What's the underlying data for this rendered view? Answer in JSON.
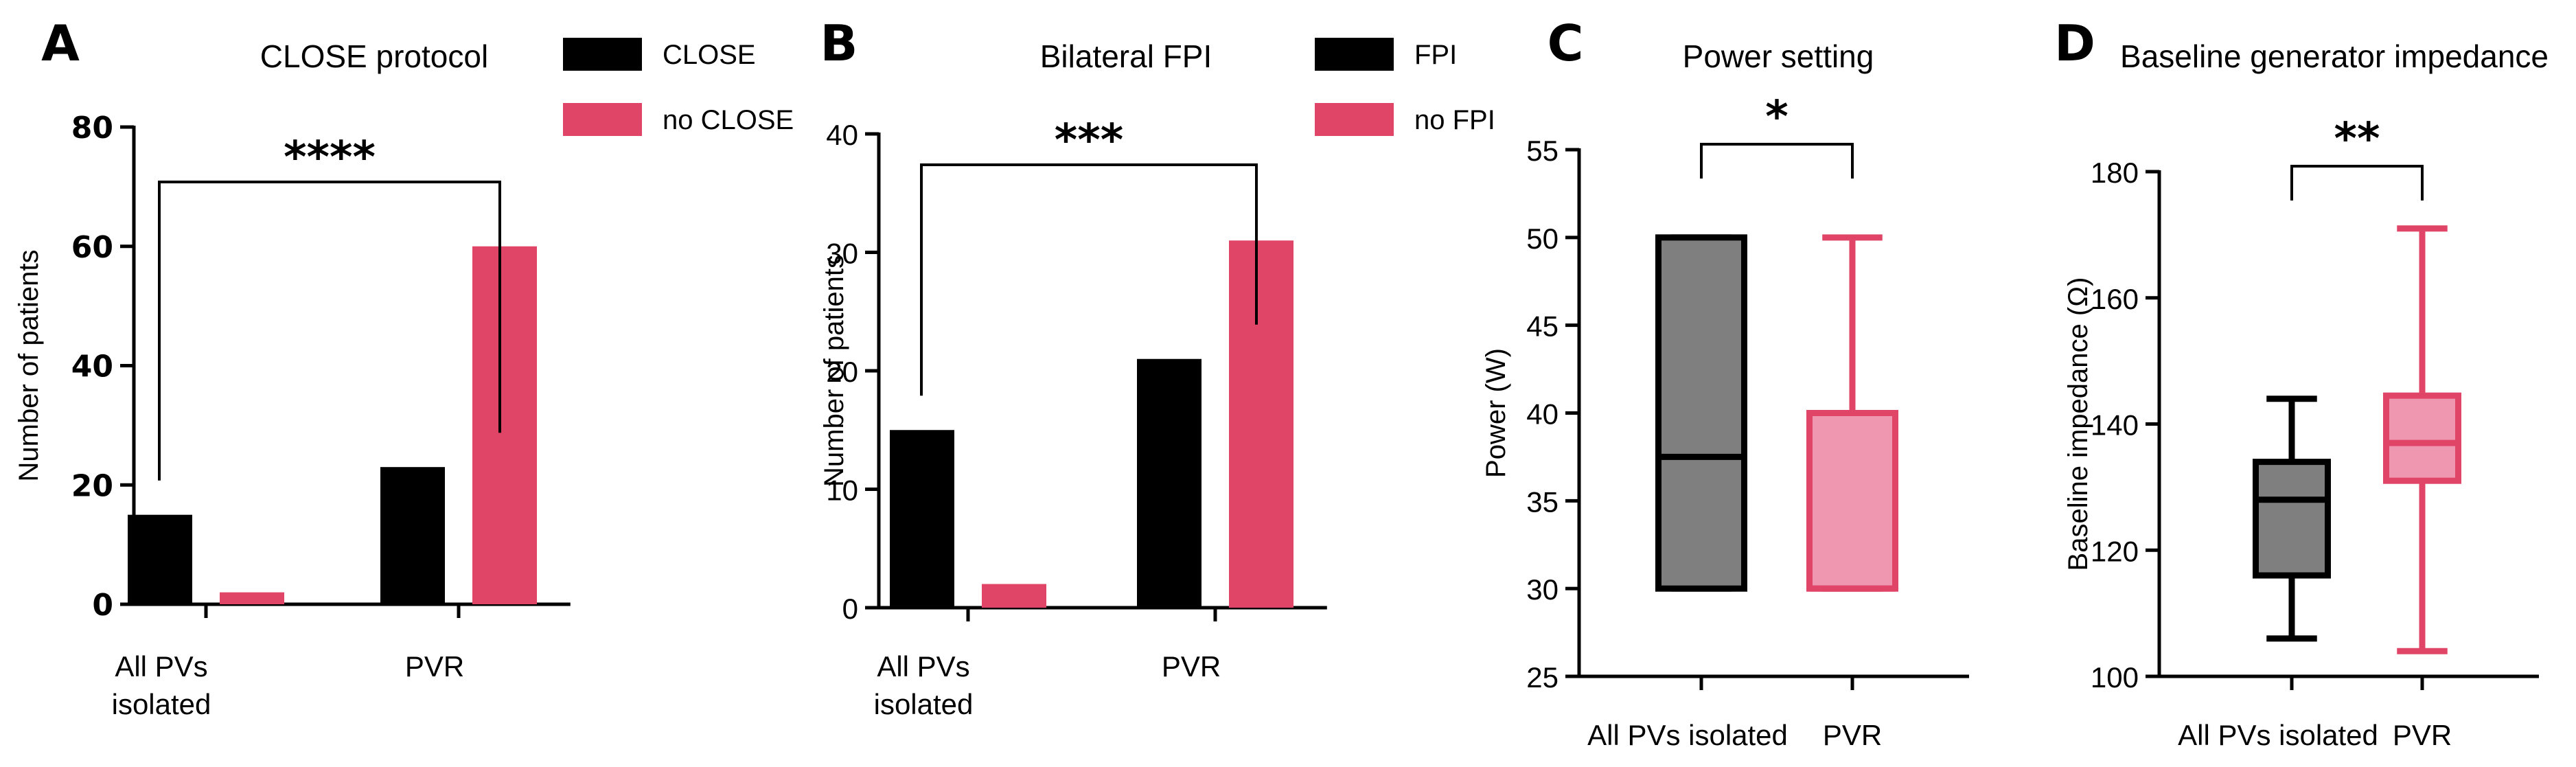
{
  "colors": {
    "black": "#000000",
    "pink": "#e04466",
    "gray": "#7f7f7f",
    "light_pink": "#ef96b0"
  },
  "chart_data": [
    {
      "panel": "A",
      "type": "bar",
      "title": "CLOSE protocol",
      "ylabel": "Number of patients",
      "xlabel": "",
      "categories": [
        [
          "All PVs",
          "isolated"
        ],
        [
          "PVR"
        ]
      ],
      "series": [
        {
          "name": "CLOSE",
          "color": "#000000",
          "values": [
            15,
            23
          ]
        },
        {
          "name": "no CLOSE",
          "color": "#e04466",
          "values": [
            2,
            60
          ]
        }
      ],
      "ylim": [
        0,
        80
      ],
      "yticks": [
        0,
        20,
        40,
        60,
        80
      ],
      "significance": {
        "label": "****",
        "from": 0,
        "to": 1
      },
      "legend": "top-right"
    },
    {
      "panel": "B",
      "type": "bar",
      "title": "Bilateral FPI",
      "ylabel": "Number of patients",
      "xlabel": "",
      "categories": [
        [
          "All PVs",
          "isolated"
        ],
        [
          "PVR"
        ]
      ],
      "series": [
        {
          "name": "FPI",
          "color": "#000000",
          "values": [
            15,
            21
          ]
        },
        {
          "name": "no FPI",
          "color": "#e04466",
          "values": [
            2,
            31
          ]
        }
      ],
      "ylim": [
        0,
        40
      ],
      "yticks": [
        0,
        10,
        20,
        30,
        40
      ],
      "significance": {
        "label": "***",
        "from": 0,
        "to": 1
      },
      "legend": "top-right"
    },
    {
      "panel": "C",
      "type": "box",
      "title": "Power setting",
      "ylabel": "Power (W)",
      "xlabel": "",
      "categories": [
        "All PVs isolated",
        "PVR"
      ],
      "boxes": [
        {
          "name": "All PVs isolated",
          "min": 30,
          "q1": 30,
          "median": 37.5,
          "q3": 50,
          "max": 50,
          "fill": "#7f7f7f",
          "stroke": "#000000"
        },
        {
          "name": "PVR",
          "min": 30,
          "q1": 30,
          "median": 30,
          "q3": 40,
          "max": 50,
          "fill": "#ef96b0",
          "stroke": "#e04466"
        }
      ],
      "ylim": [
        25,
        55
      ],
      "yticks": [
        25,
        30,
        35,
        40,
        45,
        50,
        55
      ],
      "significance": {
        "label": "*",
        "from": 0,
        "to": 1
      }
    },
    {
      "panel": "D",
      "type": "box",
      "title": "Baseline generator impedance",
      "ylabel": "Baseline impedance (Ω)",
      "xlabel": "",
      "categories": [
        "All PVs isolated",
        "PVR"
      ],
      "boxes": [
        {
          "name": "All PVs isolated",
          "min": 106,
          "q1": 116,
          "median": 128,
          "q3": 134,
          "max": 144,
          "fill": "#7f7f7f",
          "stroke": "#000000"
        },
        {
          "name": "PVR",
          "min": 104,
          "q1": 131,
          "median": 137,
          "q3": 144.5,
          "max": 171,
          "fill": "#ef96b0",
          "stroke": "#e04466"
        }
      ],
      "ylim": [
        100,
        180
      ],
      "yticks": [
        100,
        120,
        140,
        160,
        180
      ],
      "significance": {
        "label": "**",
        "from": 0,
        "to": 1
      }
    }
  ]
}
